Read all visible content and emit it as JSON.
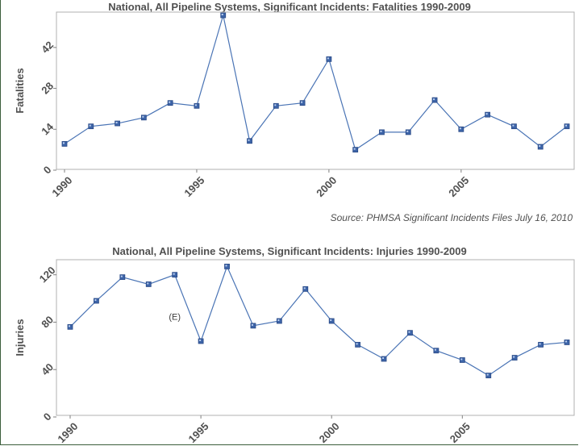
{
  "chart_data": [
    {
      "type": "line",
      "title": "National, All Pipeline Systems, Significant Incidents: Fatalities 1990-2009",
      "ylabel": "Fatalities",
      "xlabel": "",
      "x": [
        1990,
        1991,
        1992,
        1993,
        1994,
        1995,
        1996,
        1997,
        1998,
        1999,
        2000,
        2001,
        2002,
        2003,
        2004,
        2005,
        2006,
        2007,
        2008,
        2009
      ],
      "series": [
        {
          "values": [
            9,
            15,
            16,
            18,
            23,
            22,
            53,
            10,
            22,
            23,
            38,
            7,
            13,
            13,
            24,
            14,
            19,
            15,
            8,
            15
          ]
        }
      ],
      "ylim": [
        0,
        53
      ],
      "yticks": [
        0,
        14,
        28,
        42
      ],
      "xticks": [
        1990,
        1995,
        2000,
        2005
      ],
      "grid": false,
      "line_color": "#4a74b5",
      "marker_color": "#3d64a8"
    },
    {
      "type": "line",
      "title": "National, All Pipeline Systems, Significant Incidents: Injuries 1990-2009",
      "ylabel": "Injuries",
      "xlabel": "",
      "x": [
        1990,
        1991,
        1992,
        1993,
        1994,
        1995,
        1996,
        1997,
        1998,
        1999,
        2000,
        2001,
        2002,
        2003,
        2004,
        2005,
        2006,
        2007,
        2008,
        2009
      ],
      "series": [
        {
          "values": [
            76,
            98,
            118,
            112,
            120,
            64,
            127,
            77,
            81,
            108,
            81,
            61,
            49,
            71,
            56,
            48,
            35,
            50,
            61,
            63
          ]
        }
      ],
      "ylim": [
        0,
        130
      ],
      "yticks": [
        0,
        40,
        80,
        120
      ],
      "xticks": [
        1990,
        1995,
        2000,
        2005
      ],
      "grid": false,
      "annotations": [
        {
          "text": "(E)",
          "x": 1994,
          "y": 82
        }
      ],
      "line_color": "#4a74b5",
      "marker_color": "#3d64a8"
    }
  ],
  "source_note": "Source: PHMSA Significant Incidents Files July 16, 2010"
}
